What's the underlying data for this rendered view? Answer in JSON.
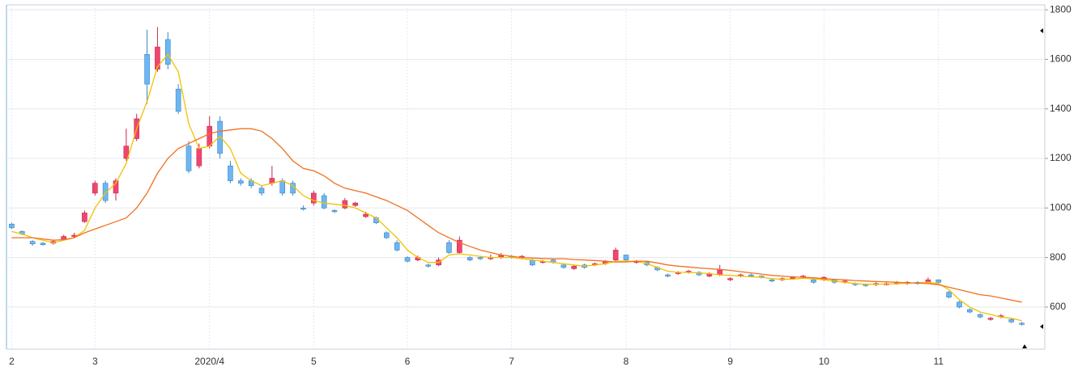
{
  "chart_data": {
    "type": "candlestick",
    "categories": [
      "2",
      null,
      null,
      null,
      null,
      null,
      null,
      null,
      "3",
      null,
      null,
      null,
      null,
      null,
      null,
      null,
      null,
      null,
      null,
      "2020/4",
      null,
      null,
      null,
      null,
      null,
      null,
      null,
      null,
      null,
      "5",
      null,
      null,
      null,
      null,
      null,
      null,
      null,
      null,
      "6",
      null,
      null,
      null,
      null,
      null,
      null,
      null,
      null,
      null,
      "7",
      null,
      null,
      null,
      null,
      null,
      null,
      null,
      null,
      null,
      null,
      "8",
      null,
      null,
      null,
      null,
      null,
      null,
      null,
      null,
      null,
      "9",
      null,
      null,
      null,
      null,
      null,
      null,
      null,
      null,
      "10",
      null,
      null,
      null,
      null,
      null,
      null,
      null,
      null,
      null,
      null,
      "11",
      null,
      null,
      null,
      null,
      null,
      null,
      null,
      null
    ],
    "open": [
      935,
      905,
      865,
      858,
      858,
      872,
      885,
      945,
      1060,
      1100,
      1060,
      1200,
      1280,
      1620,
      1560,
      1680,
      1480,
      1250,
      1170,
      1250,
      1350,
      1170,
      1110,
      1110,
      1080,
      1100,
      1110,
      1100,
      1000,
      1020,
      1050,
      990,
      1000,
      1010,
      965,
      960,
      900,
      860,
      800,
      790,
      770,
      770,
      860,
      820,
      800,
      800,
      795,
      800,
      805,
      800,
      790,
      780,
      790,
      770,
      755,
      770,
      770,
      775,
      790,
      810,
      780,
      780,
      760,
      730,
      735,
      740,
      740,
      725,
      730,
      710,
      725,
      730,
      725,
      710,
      710,
      715,
      720,
      710,
      710,
      710,
      700,
      695,
      690,
      690,
      690,
      695,
      695,
      700,
      700,
      710,
      660,
      620,
      590,
      570,
      550,
      560,
      550,
      535
    ],
    "high": [
      940,
      910,
      870,
      862,
      870,
      892,
      900,
      990,
      1110,
      1110,
      1120,
      1320,
      1380,
      1720,
      1730,
      1710,
      1500,
      1270,
      1260,
      1370,
      1370,
      1190,
      1120,
      1120,
      1090,
      1170,
      1120,
      1110,
      1010,
      1070,
      1060,
      995,
      1040,
      1025,
      985,
      965,
      905,
      870,
      805,
      808,
      775,
      800,
      870,
      885,
      805,
      805,
      812,
      818,
      810,
      810,
      795,
      790,
      795,
      772,
      770,
      775,
      780,
      790,
      840,
      812,
      790,
      785,
      765,
      735,
      745,
      750,
      745,
      740,
      770,
      720,
      735,
      735,
      728,
      715,
      720,
      725,
      730,
      715,
      725,
      715,
      710,
      700,
      695,
      700,
      700,
      705,
      705,
      705,
      720,
      712,
      665,
      625,
      595,
      575,
      560,
      572,
      555,
      540
    ],
    "low": [
      915,
      890,
      848,
      848,
      852,
      868,
      880,
      940,
      1050,
      1020,
      1030,
      1190,
      1270,
      1420,
      1550,
      1560,
      1380,
      1140,
      1160,
      1240,
      1200,
      1100,
      1090,
      1080,
      1050,
      1090,
      1050,
      1050,
      990,
      1010,
      995,
      980,
      995,
      1005,
      960,
      935,
      875,
      825,
      780,
      785,
      760,
      765,
      815,
      815,
      785,
      790,
      790,
      795,
      795,
      795,
      765,
      775,
      775,
      755,
      750,
      755,
      765,
      770,
      785,
      785,
      775,
      765,
      745,
      720,
      730,
      735,
      725,
      720,
      725,
      705,
      720,
      720,
      715,
      700,
      705,
      710,
      715,
      695,
      705,
      695,
      695,
      685,
      682,
      685,
      688,
      690,
      690,
      690,
      695,
      695,
      635,
      595,
      575,
      555,
      545,
      555,
      535,
      525
    ],
    "close": [
      920,
      895,
      855,
      852,
      865,
      885,
      890,
      980,
      1100,
      1030,
      1110,
      1250,
      1360,
      1500,
      1650,
      1580,
      1390,
      1150,
      1240,
      1330,
      1220,
      1110,
      1100,
      1090,
      1060,
      1120,
      1060,
      1060,
      995,
      1060,
      1000,
      985,
      1030,
      1020,
      975,
      940,
      880,
      830,
      785,
      800,
      765,
      790,
      820,
      870,
      790,
      795,
      800,
      810,
      800,
      805,
      770,
      785,
      780,
      760,
      765,
      760,
      775,
      785,
      830,
      790,
      785,
      770,
      750,
      725,
      740,
      745,
      730,
      735,
      750,
      715,
      730,
      725,
      720,
      705,
      715,
      720,
      725,
      700,
      720,
      700,
      705,
      690,
      688,
      695,
      695,
      700,
      700,
      695,
      710,
      700,
      640,
      600,
      580,
      560,
      555,
      565,
      540,
      530
    ],
    "up_color": "#f0466e",
    "down_color": "#6db6f2",
    "lines": [
      {
        "color": "#f2c200",
        "values": [
          905,
          895,
          880,
          870,
          860,
          870,
          880,
          910,
          1000,
          1060,
          1100,
          1180,
          1320,
          1430,
          1570,
          1620,
          1550,
          1340,
          1240,
          1250,
          1290,
          1240,
          1140,
          1110,
          1090,
          1100,
          1110,
          1090,
          1050,
          1030,
          1020,
          1015,
          1010,
          1000,
          980,
          960,
          920,
          880,
          830,
          800,
          780,
          780,
          810,
          815,
          810,
          805,
          800,
          800,
          800,
          795,
          790,
          785,
          780,
          775,
          770,
          765,
          770,
          775,
          785,
          785,
          785,
          775,
          760,
          745,
          740,
          740,
          738,
          735,
          730,
          728,
          725,
          722,
          720,
          715,
          712,
          713,
          716,
          714,
          710,
          705,
          700,
          695,
          692,
          692,
          693,
          694,
          696,
          698,
          700,
          695,
          670,
          630,
          600,
          580,
          570,
          560,
          555,
          545
        ]
      },
      {
        "color": "#f07020",
        "values": [
          880,
          880,
          880,
          875,
          870,
          872,
          880,
          900,
          915,
          930,
          945,
          960,
          1000,
          1060,
          1140,
          1200,
          1240,
          1260,
          1280,
          1300,
          1310,
          1315,
          1320,
          1320,
          1310,
          1280,
          1240,
          1190,
          1160,
          1150,
          1130,
          1100,
          1080,
          1070,
          1060,
          1045,
          1030,
          1010,
          990,
          960,
          930,
          900,
          880,
          860,
          845,
          830,
          820,
          810,
          805,
          800,
          798,
          796,
          795,
          795,
          792,
          790,
          788,
          785,
          782,
          782,
          785,
          785,
          778,
          770,
          765,
          762,
          758,
          755,
          752,
          748,
          743,
          738,
          733,
          728,
          725,
          722,
          720,
          718,
          715,
          712,
          710,
          707,
          705,
          703,
          702,
          700,
          698,
          697,
          695,
          690,
          680,
          670,
          660,
          650,
          645,
          637,
          628,
          620
        ]
      }
    ],
    "ylim": [
      430,
      1820
    ],
    "yticks": [
      600,
      800,
      1000,
      1200,
      1400,
      1600,
      1800
    ],
    "grid": true
  }
}
